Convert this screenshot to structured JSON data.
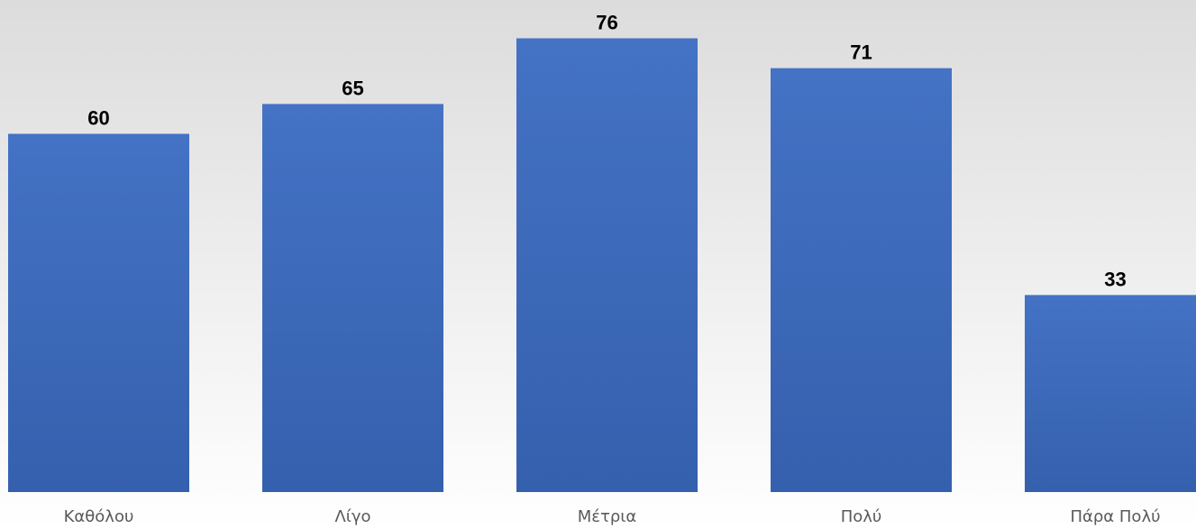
{
  "chart_data": {
    "type": "bar",
    "categories": [
      "Καθόλου",
      "Λίγο",
      "Μέτρια",
      "Πολύ",
      "Πάρα Πολύ"
    ],
    "values": [
      60,
      65,
      76,
      71,
      33
    ],
    "title": "",
    "xlabel": "",
    "ylabel": "",
    "ylim": [
      0,
      80
    ],
    "grid": false,
    "legend": "none",
    "data_labels": true,
    "colors": {
      "bar_top": "#4472C4",
      "bar_bottom": "#3560AE",
      "background_top": "#DCDCDC",
      "background_bottom": "#FFFFFF",
      "data_label": "#000000",
      "category_label": "#595959"
    }
  }
}
